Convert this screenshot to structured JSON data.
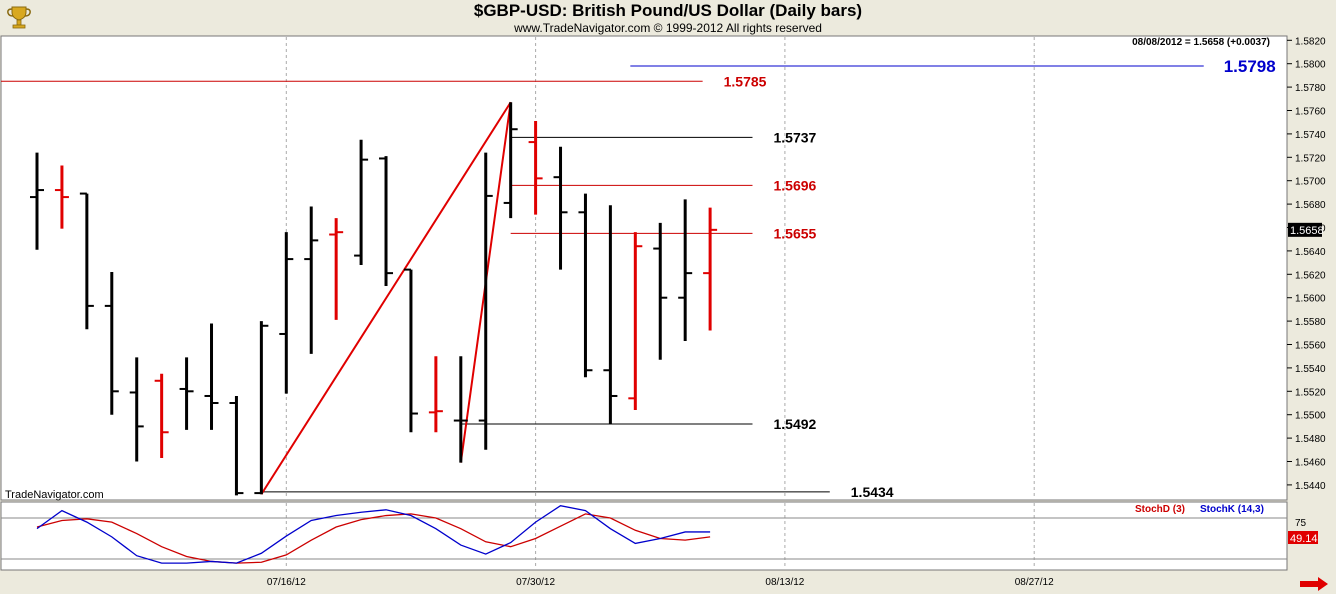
{
  "header": {
    "title": "$GBP-USD:  British Pound/US Dollar  (Daily bars)",
    "subtitle": "www.TradeNavigator.com © 1999-2012 All rights reserved",
    "quote": "08/08/2012 = 1.5658 (+0.0037)",
    "watermark": "TradeNavigator.com"
  },
  "colors": {
    "up": "#000000",
    "down": "#e00000",
    "blue": "#0000cc",
    "bg": "#ffffff",
    "frame": "#eceadd"
  },
  "chart_data": [
    {
      "type": "ohlc",
      "title": "$GBP-USD:  British Pound/US Dollar  (Daily bars)",
      "ylim": [
        1.5415,
        1.583
      ],
      "y_ticks": [
        "1.5820",
        "1.5800",
        "1.5780",
        "1.5760",
        "1.5740",
        "1.5720",
        "1.5700",
        "1.5680",
        "1.5660",
        "1.5640",
        "1.5620",
        "1.5600",
        "1.5580",
        "1.5560",
        "1.5540",
        "1.5520",
        "1.5500",
        "1.5480",
        "1.5460",
        "1.5440"
      ],
      "y_tick_values": [
        1.582,
        1.58,
        1.578,
        1.576,
        1.574,
        1.572,
        1.57,
        1.568,
        1.566,
        1.564,
        1.562,
        1.56,
        1.558,
        1.556,
        1.554,
        1.552,
        1.55,
        1.548,
        1.546,
        1.544
      ],
      "x_labels": [
        "07/16/12",
        "07/30/12",
        "08/13/12",
        "08/27/12"
      ],
      "x_label_index": [
        10,
        20,
        30,
        40
      ],
      "last_price_label": "1.5658",
      "last_price": 1.5658,
      "bars": [
        {
          "i": 0,
          "o": 1.5686,
          "h": 1.5724,
          "l": 1.5641,
          "c": 1.5692,
          "d": "up"
        },
        {
          "i": 1,
          "o": 1.5692,
          "h": 1.5713,
          "l": 1.5659,
          "c": 1.5686,
          "d": "down"
        },
        {
          "i": 2,
          "o": 1.5689,
          "h": 1.5689,
          "l": 1.5573,
          "c": 1.5593,
          "d": "up"
        },
        {
          "i": 3,
          "o": 1.5593,
          "h": 1.5622,
          "l": 1.55,
          "c": 1.552,
          "d": "up"
        },
        {
          "i": 4,
          "o": 1.5519,
          "h": 1.5549,
          "l": 1.546,
          "c": 1.549,
          "d": "up"
        },
        {
          "i": 5,
          "o": 1.5529,
          "h": 1.5535,
          "l": 1.5463,
          "c": 1.5485,
          "d": "down"
        },
        {
          "i": 6,
          "o": 1.5522,
          "h": 1.5549,
          "l": 1.5487,
          "c": 1.552,
          "d": "up"
        },
        {
          "i": 7,
          "o": 1.5516,
          "h": 1.5578,
          "l": 1.5487,
          "c": 1.551,
          "d": "up"
        },
        {
          "i": 8,
          "o": 1.551,
          "h": 1.5516,
          "l": 1.5431,
          "c": 1.5433,
          "d": "up"
        },
        {
          "i": 9,
          "o": 1.5433,
          "h": 1.558,
          "l": 1.5432,
          "c": 1.5576,
          "d": "up"
        },
        {
          "i": 10,
          "o": 1.5569,
          "h": 1.5656,
          "l": 1.5518,
          "c": 1.5633,
          "d": "up"
        },
        {
          "i": 11,
          "o": 1.5633,
          "h": 1.5678,
          "l": 1.5552,
          "c": 1.5649,
          "d": "up"
        },
        {
          "i": 12,
          "o": 1.5654,
          "h": 1.5668,
          "l": 1.5581,
          "c": 1.5656,
          "d": "down"
        },
        {
          "i": 13,
          "o": 1.5636,
          "h": 1.5735,
          "l": 1.5628,
          "c": 1.5718,
          "d": "up"
        },
        {
          "i": 14,
          "o": 1.5719,
          "h": 1.5721,
          "l": 1.561,
          "c": 1.5621,
          "d": "up"
        },
        {
          "i": 15,
          "o": 1.5624,
          "h": 1.5624,
          "l": 1.5485,
          "c": 1.5501,
          "d": "up"
        },
        {
          "i": 16,
          "o": 1.5502,
          "h": 1.555,
          "l": 1.5485,
          "c": 1.5503,
          "d": "down"
        },
        {
          "i": 17,
          "o": 1.5495,
          "h": 1.555,
          "l": 1.5459,
          "c": 1.5495,
          "d": "up"
        },
        {
          "i": 18,
          "o": 1.5495,
          "h": 1.5724,
          "l": 1.547,
          "c": 1.5687,
          "d": "up"
        },
        {
          "i": 19,
          "o": 1.5681,
          "h": 1.5767,
          "l": 1.5668,
          "c": 1.5744,
          "d": "up"
        },
        {
          "i": 20,
          "o": 1.5733,
          "h": 1.5751,
          "l": 1.5671,
          "c": 1.5702,
          "d": "down"
        },
        {
          "i": 21,
          "o": 1.5703,
          "h": 1.5729,
          "l": 1.5624,
          "c": 1.5673,
          "d": "up"
        },
        {
          "i": 22,
          "o": 1.5673,
          "h": 1.5689,
          "l": 1.5532,
          "c": 1.5538,
          "d": "up"
        },
        {
          "i": 23,
          "o": 1.5538,
          "h": 1.5679,
          "l": 1.5492,
          "c": 1.5516,
          "d": "up"
        },
        {
          "i": 24,
          "o": 1.5514,
          "h": 1.5656,
          "l": 1.5504,
          "c": 1.5644,
          "d": "down"
        },
        {
          "i": 25,
          "o": 1.5642,
          "h": 1.5664,
          "l": 1.5547,
          "c": 1.56,
          "d": "up"
        },
        {
          "i": 26,
          "o": 1.56,
          "h": 1.5684,
          "l": 1.5563,
          "c": 1.5621,
          "d": "up"
        },
        {
          "i": 27,
          "o": 1.5621,
          "h": 1.5677,
          "l": 1.5572,
          "c": 1.5658,
          "d": "down"
        }
      ],
      "zigzag": [
        {
          "i": 9,
          "v": 1.5432
        },
        {
          "i": 19,
          "v": 1.5767
        },
        {
          "i": 17,
          "v": 1.5459
        },
        {
          "i": 19,
          "v": 1.5767
        }
      ],
      "levels": [
        {
          "label": "1.5785",
          "value": 1.5785,
          "color": "#cc0000",
          "from": -1.5,
          "to": 26.7
        },
        {
          "label": "1.5798",
          "value": 1.5798,
          "color": "#0000cc",
          "from": 23.8,
          "to": 46.8
        },
        {
          "label": "1.5737",
          "value": 1.5737,
          "color": "#000000",
          "from": 19.0,
          "to": 28.7
        },
        {
          "label": "1.5696",
          "value": 1.5696,
          "color": "#cc0000",
          "from": 19.0,
          "to": 28.7
        },
        {
          "label": "1.5655",
          "value": 1.5655,
          "color": "#cc0000",
          "from": 19.0,
          "to": 28.7
        },
        {
          "label": "1.5492",
          "value": 1.5492,
          "color": "#000000",
          "from": 17.0,
          "to": 28.7
        },
        {
          "label": "1.5434",
          "value": 1.5434,
          "color": "#000000",
          "from": 9.0,
          "to": 31.8
        }
      ]
    },
    {
      "type": "line",
      "legend": [
        "StochD (3)",
        "StochK (14,3)"
      ],
      "y_ticks": [
        "75"
      ],
      "last_value_label": "49.14",
      "series": [
        {
          "name": "StochD (3)",
          "color": "#cc0000",
          "values": [
            64,
            72,
            74,
            70,
            56,
            40,
            28,
            22,
            20,
            21,
            30,
            48,
            64,
            73,
            78,
            80,
            75,
            62,
            46,
            40,
            50,
            65,
            80,
            75,
            60,
            50,
            48,
            52
          ]
        },
        {
          "name": "StochK (14,3)",
          "color": "#0000cc",
          "values": [
            62,
            84,
            70,
            52,
            29,
            20,
            20,
            22,
            20,
            32,
            53,
            72,
            78,
            82,
            85,
            78,
            62,
            42,
            31,
            45,
            70,
            90,
            84,
            62,
            44,
            50,
            58,
            58
          ]
        }
      ]
    }
  ]
}
